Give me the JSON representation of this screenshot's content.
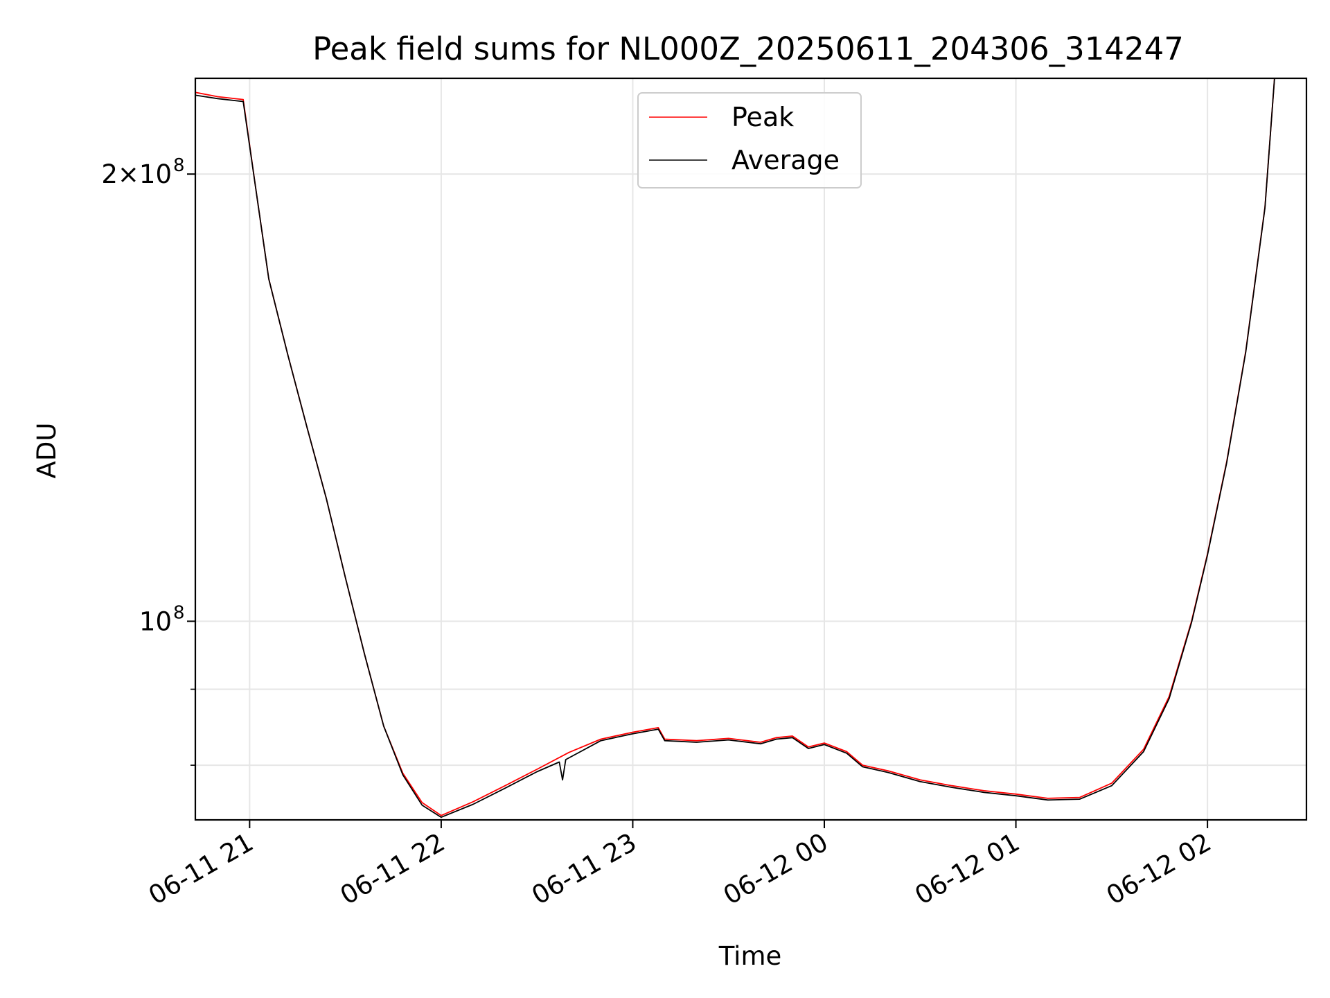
{
  "chart_data": {
    "type": "line",
    "title": "Peak field sums for NL000Z_20250611_204306_314247",
    "xlabel": "Time",
    "ylabel": "ADU",
    "y_scale": "log",
    "xlim": [
      "2025-06-11 20:43",
      "2025-06-12 02:31"
    ],
    "ylim": [
      73500000,
      232000000
    ],
    "x_ticks": [
      "06-11 21",
      "06-11 22",
      "06-11 23",
      "06-12 00",
      "06-12 01",
      "06-12 02"
    ],
    "x_tick_values": [
      "2025-06-11 21:00",
      "2025-06-11 22:00",
      "2025-06-11 23:00",
      "2025-06-12 00:00",
      "2025-06-12 01:00",
      "2025-06-12 02:00"
    ],
    "y_major_ticks": [
      {
        "value": 200000000,
        "mantissa": "2",
        "base": "10",
        "exponent": "8"
      },
      {
        "value": 100000000,
        "mantissa": "",
        "base": "10",
        "exponent": "8"
      }
    ],
    "y_minor_ticks": [
      80000000,
      90000000
    ],
    "grid": true,
    "legend": {
      "position": "top-center",
      "entries": [
        "Peak",
        "Average"
      ]
    },
    "series": [
      {
        "name": "Peak",
        "color": "#ff0000",
        "points": [
          [
            "2025-06-11 20:43",
            227000000
          ],
          [
            "2025-06-11 20:50",
            225500000
          ],
          [
            "2025-06-11 20:58",
            224500000
          ],
          [
            "2025-06-11 21:02",
            195000000
          ],
          [
            "2025-06-11 21:06",
            170000000
          ],
          [
            "2025-06-11 21:12",
            151000000
          ],
          [
            "2025-06-11 21:18",
            135000000
          ],
          [
            "2025-06-11 21:24",
            121000000
          ],
          [
            "2025-06-11 21:30",
            107000000
          ],
          [
            "2025-06-11 21:36",
            95000000
          ],
          [
            "2025-06-11 21:42",
            85000000
          ],
          [
            "2025-06-11 21:48",
            79000000
          ],
          [
            "2025-06-11 21:54",
            75500000
          ],
          [
            "2025-06-11 22:00",
            74000000
          ],
          [
            "2025-06-11 22:10",
            75600000
          ],
          [
            "2025-06-11 22:20",
            77500000
          ],
          [
            "2025-06-11 22:30",
            79500000
          ],
          [
            "2025-06-11 22:40",
            81600000
          ],
          [
            "2025-06-11 22:50",
            83300000
          ],
          [
            "2025-06-11 23:00",
            84200000
          ],
          [
            "2025-06-11 23:08",
            84800000
          ],
          [
            "2025-06-11 23:10",
            83300000
          ],
          [
            "2025-06-11 23:20",
            83100000
          ],
          [
            "2025-06-11 23:30",
            83400000
          ],
          [
            "2025-06-11 23:40",
            82900000
          ],
          [
            "2025-06-11 23:45",
            83500000
          ],
          [
            "2025-06-11 23:50",
            83700000
          ],
          [
            "2025-06-11 23:55",
            82300000
          ],
          [
            "2025-06-12 00:00",
            82800000
          ],
          [
            "2025-06-12 00:07",
            81700000
          ],
          [
            "2025-06-12 00:12",
            80000000
          ],
          [
            "2025-06-12 00:20",
            79300000
          ],
          [
            "2025-06-12 00:30",
            78200000
          ],
          [
            "2025-06-12 00:40",
            77500000
          ],
          [
            "2025-06-12 00:50",
            76900000
          ],
          [
            "2025-06-12 01:00",
            76500000
          ],
          [
            "2025-06-12 01:10",
            76000000
          ],
          [
            "2025-06-12 01:20",
            76100000
          ],
          [
            "2025-06-12 01:30",
            77800000
          ],
          [
            "2025-06-12 01:40",
            82000000
          ],
          [
            "2025-06-12 01:48",
            89000000
          ],
          [
            "2025-06-12 01:55",
            100000000
          ],
          [
            "2025-06-12 02:00",
            111000000
          ],
          [
            "2025-06-12 02:06",
            128000000
          ],
          [
            "2025-06-12 02:12",
            152000000
          ],
          [
            "2025-06-12 02:18",
            190000000
          ],
          [
            "2025-06-12 02:21",
            232000000
          ]
        ]
      },
      {
        "name": "Average",
        "color": "#000000",
        "points": [
          [
            "2025-06-11 20:43",
            226000000
          ],
          [
            "2025-06-11 20:50",
            224800000
          ],
          [
            "2025-06-11 20:58",
            223800000
          ],
          [
            "2025-06-11 21:02",
            195000000
          ],
          [
            "2025-06-11 21:06",
            170000000
          ],
          [
            "2025-06-11 21:12",
            151000000
          ],
          [
            "2025-06-11 21:18",
            135000000
          ],
          [
            "2025-06-11 21:24",
            121000000
          ],
          [
            "2025-06-11 21:30",
            107000000
          ],
          [
            "2025-06-11 21:36",
            95000000
          ],
          [
            "2025-06-11 21:42",
            85000000
          ],
          [
            "2025-06-11 21:48",
            78800000
          ],
          [
            "2025-06-11 21:54",
            75200000
          ],
          [
            "2025-06-11 22:00",
            73800000
          ],
          [
            "2025-06-11 22:10",
            75300000
          ],
          [
            "2025-06-11 22:20",
            77200000
          ],
          [
            "2025-06-11 22:30",
            79200000
          ],
          [
            "2025-06-11 22:37",
            80400000
          ],
          [
            "2025-06-11 22:38",
            78200000
          ],
          [
            "2025-06-11 22:39",
            80700000
          ],
          [
            "2025-06-11 22:50",
            83100000
          ],
          [
            "2025-06-11 23:00",
            84000000
          ],
          [
            "2025-06-11 23:08",
            84600000
          ],
          [
            "2025-06-11 23:10",
            83100000
          ],
          [
            "2025-06-11 23:20",
            82900000
          ],
          [
            "2025-06-11 23:30",
            83200000
          ],
          [
            "2025-06-11 23:40",
            82700000
          ],
          [
            "2025-06-11 23:45",
            83300000
          ],
          [
            "2025-06-11 23:50",
            83500000
          ],
          [
            "2025-06-11 23:55",
            82100000
          ],
          [
            "2025-06-12 00:00",
            82600000
          ],
          [
            "2025-06-12 00:07",
            81500000
          ],
          [
            "2025-06-12 00:12",
            79800000
          ],
          [
            "2025-06-12 00:20",
            79100000
          ],
          [
            "2025-06-12 00:30",
            78000000
          ],
          [
            "2025-06-12 00:40",
            77300000
          ],
          [
            "2025-06-12 00:50",
            76700000
          ],
          [
            "2025-06-12 01:00",
            76300000
          ],
          [
            "2025-06-12 01:10",
            75800000
          ],
          [
            "2025-06-12 01:20",
            75900000
          ],
          [
            "2025-06-12 01:30",
            77500000
          ],
          [
            "2025-06-12 01:40",
            81700000
          ],
          [
            "2025-06-12 01:48",
            88700000
          ],
          [
            "2025-06-12 01:55",
            99800000
          ],
          [
            "2025-06-12 02:00",
            110800000
          ],
          [
            "2025-06-12 02:06",
            127800000
          ],
          [
            "2025-06-12 02:12",
            151800000
          ],
          [
            "2025-06-12 02:18",
            189800000
          ],
          [
            "2025-06-12 02:21",
            232000000
          ]
        ]
      }
    ]
  }
}
